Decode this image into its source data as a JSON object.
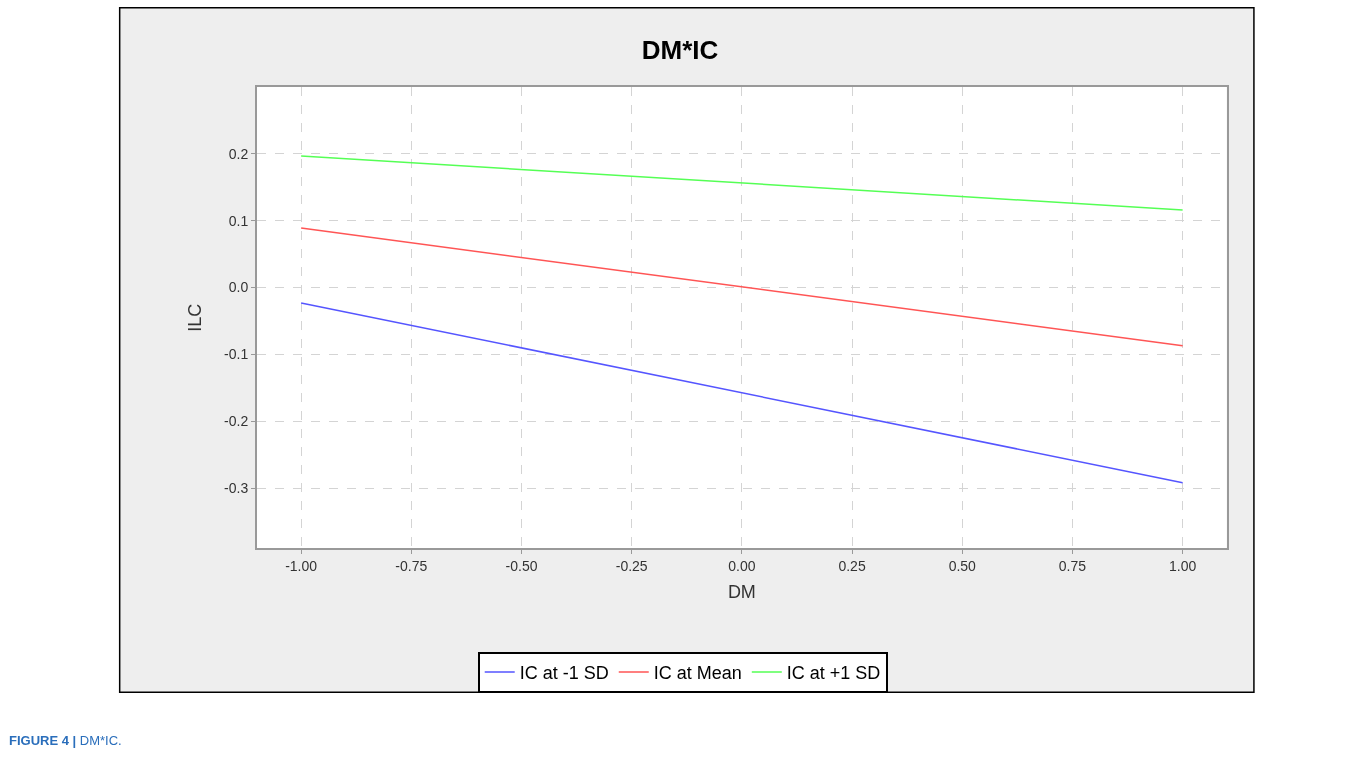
{
  "chart_data": {
    "type": "line",
    "title": "DM*IC",
    "xlabel": "DM",
    "ylabel": "ILC",
    "x": [
      -1.0,
      1.0
    ],
    "series": [
      {
        "name": "IC at -1 SD",
        "color": "#5555ff",
        "values": [
          -0.023,
          -0.292
        ]
      },
      {
        "name": "IC at Mean",
        "color": "#ff5555",
        "values": [
          0.089,
          -0.087
        ]
      },
      {
        "name": "IC at +1 SD",
        "color": "#55ff55",
        "values": [
          0.197,
          0.116
        ]
      }
    ],
    "xlim": [
      -1.1,
      1.1
    ],
    "xticks": [
      {
        "value": -1,
        "label": "-1.00"
      },
      {
        "value": -0.75,
        "label": "-0.75"
      },
      {
        "value": -0.5,
        "label": "-0.50"
      },
      {
        "value": -0.25,
        "label": "-0.25"
      },
      {
        "value": 0,
        "label": "0.00"
      },
      {
        "value": 0.25,
        "label": "0.25"
      },
      {
        "value": 0.5,
        "label": "0.50"
      },
      {
        "value": 0.75,
        "label": "0.75"
      },
      {
        "value": 1,
        "label": "1.00"
      }
    ],
    "ylim": [
      -0.39,
      0.3
    ],
    "yticks": [
      {
        "value": -0.3,
        "label": "-0.3"
      },
      {
        "value": -0.2,
        "label": "-0.2"
      },
      {
        "value": -0.1,
        "label": "-0.1"
      },
      {
        "value": 0,
        "label": "0.0"
      },
      {
        "value": 0.1,
        "label": "0.1"
      },
      {
        "value": 0.2,
        "label": "0.2"
      }
    ],
    "grid": true,
    "legend": "bottom",
    "marker": "none",
    "line_style": "solid",
    "annotations": [
      "FIGURE 4 | DM*IC."
    ]
  }
}
